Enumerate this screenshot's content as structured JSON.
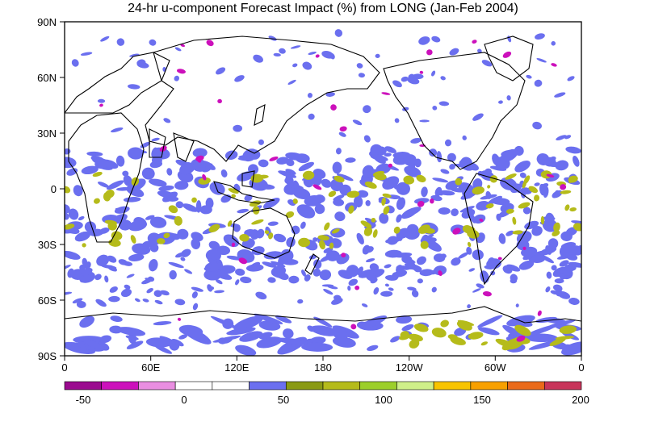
{
  "title": "24-hr u-component Forecast Impact (%) from LONG (Jan-Feb 2004)",
  "lat_labels": [
    "90N",
    "60N",
    "30N",
    "0",
    "30S",
    "60S",
    "90S"
  ],
  "lon_labels": [
    "0",
    "60E",
    "120E",
    "180",
    "120W",
    "60W",
    "0"
  ],
  "colorbar": {
    "colors": [
      "#9b0a8f",
      "#cc10bb",
      "#e98ee1",
      "#ffffff",
      "#ffffff",
      "#6b6fef",
      "#8a9a14",
      "#b5bb1a",
      "#9ccf2a",
      "#cff089",
      "#f8c400",
      "#f8a000",
      "#ea6a1a",
      "#c8345a"
    ],
    "tick_labels": [
      "-50",
      "0",
      "50",
      "100",
      "150",
      "200"
    ]
  },
  "field_colors": {
    "blue": "#6b6fef",
    "olive": "#b5bb1a",
    "magenta": "#cc10bb"
  }
}
